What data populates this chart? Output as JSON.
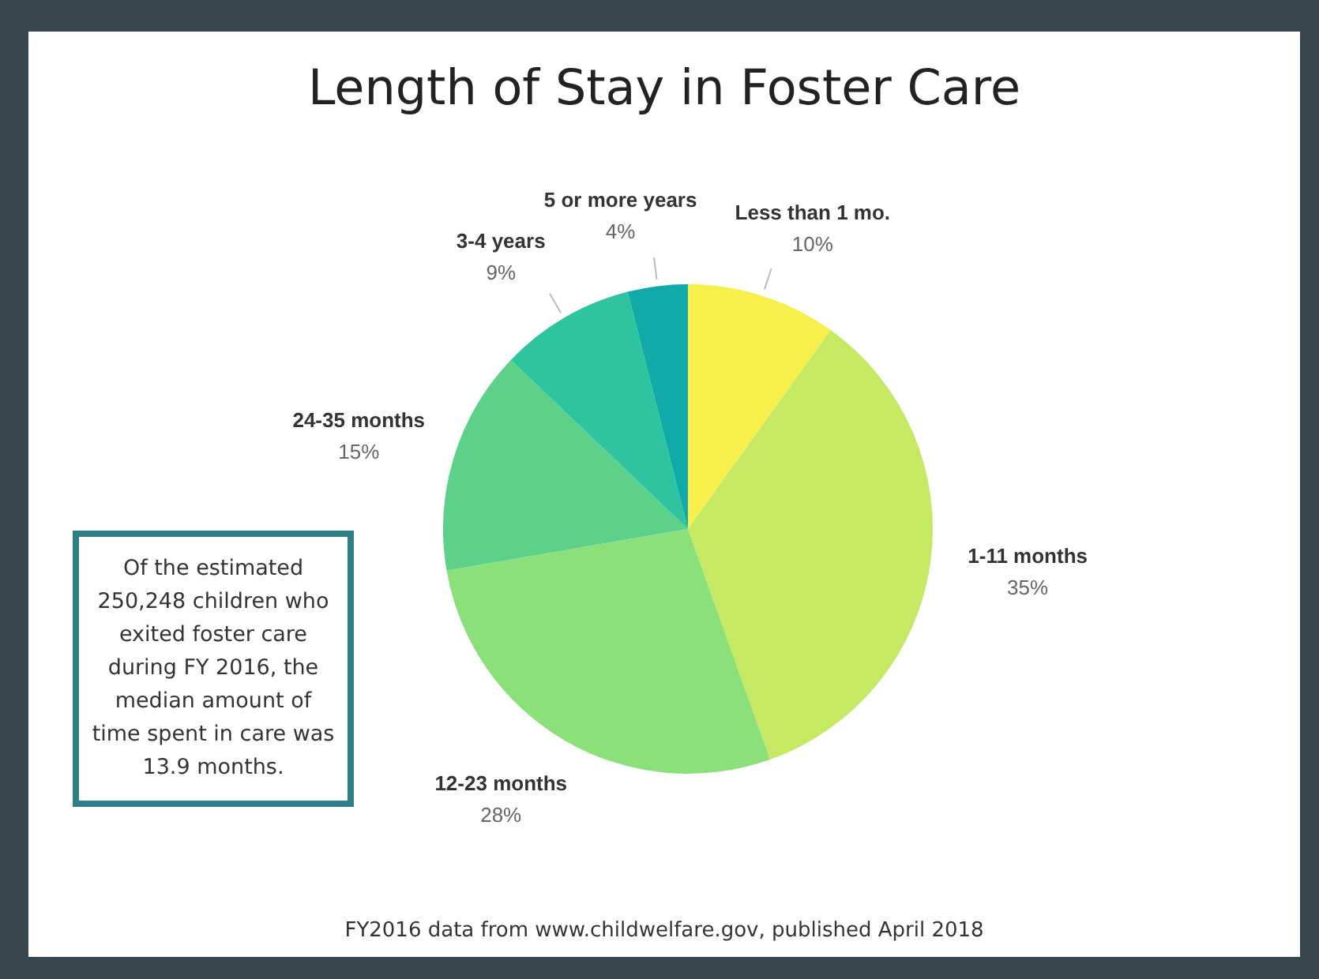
{
  "chart_data": {
    "type": "pie",
    "title": "Length of Stay in Foster Care",
    "categories": [
      "Less than 1 mo.",
      "1-11 months",
      "12-23 months",
      "24-35 months",
      "3-4 years",
      "5 or more years"
    ],
    "values": [
      10,
      35,
      28,
      15,
      9,
      4
    ],
    "value_labels": [
      "10%",
      "35%",
      "28%",
      "15%",
      "9%",
      "4%"
    ],
    "colors": [
      "#f7f04a",
      "#c5e962",
      "#8ce07a",
      "#5dd08a",
      "#2ec4a0",
      "#10aaa8"
    ],
    "legend": false,
    "annotations": [
      "Of the estimated 250,248 children who exited foster care during FY 2016, the median amount of time spent in care was 13.9 months.",
      "FY2016 data from www.childwelfare.gov, published April 2018"
    ]
  }
}
